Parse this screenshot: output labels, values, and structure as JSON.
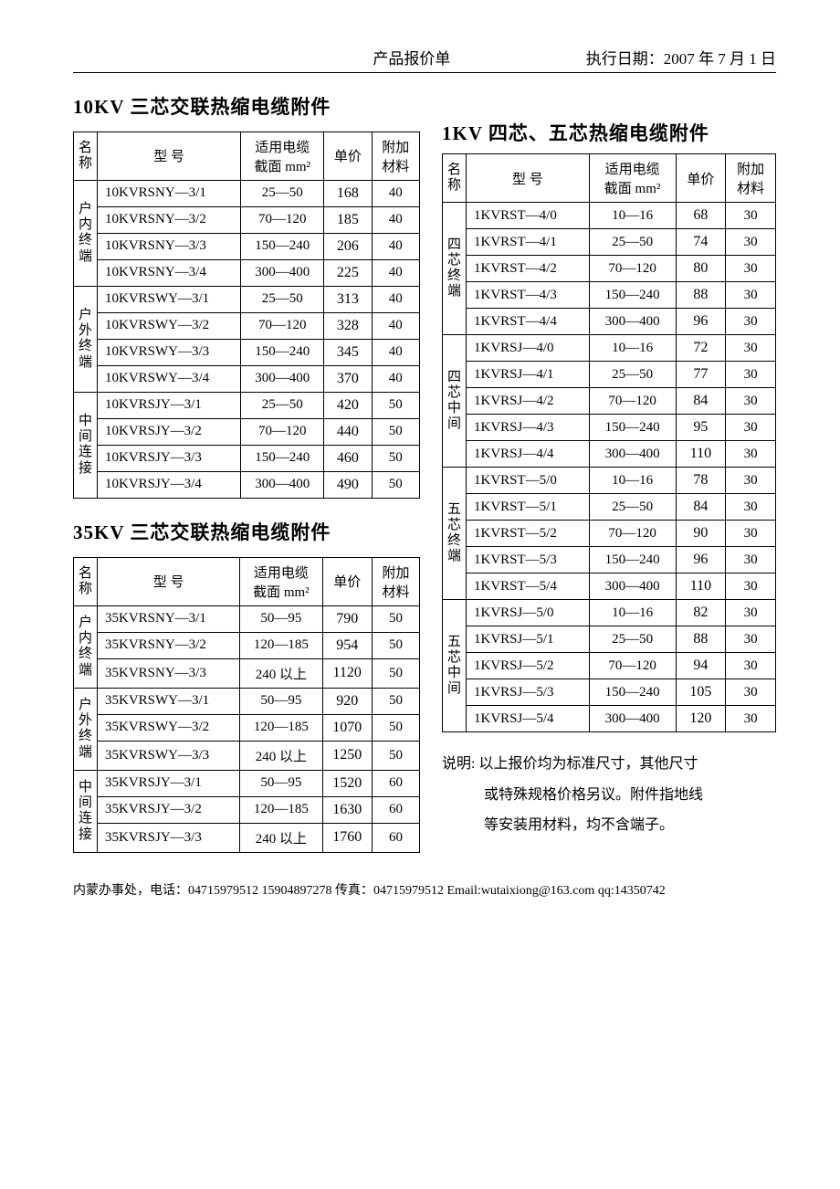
{
  "header": {
    "center": "产品报价单",
    "right_label": "执行日期：",
    "right_date": "2007 年 7 月 1 日"
  },
  "colors": {
    "text": "#000000",
    "background": "#ffffff",
    "border": "#000000"
  },
  "columns_header": {
    "name": "名称",
    "model": "型 号",
    "section_l1": "适用电缆",
    "section_l2": "截面 mm²",
    "price": "单价",
    "extra_l1": "附加",
    "extra_l2": "材料"
  },
  "table10kv": {
    "title": "10KV 三芯交联热缩电缆附件",
    "groups": [
      {
        "category": "户内终端",
        "rows": [
          {
            "model": "10KVRSNY—3/1",
            "section": "25—50",
            "price": "168",
            "extra": "40"
          },
          {
            "model": "10KVRSNY—3/2",
            "section": "70—120",
            "price": "185",
            "extra": "40"
          },
          {
            "model": "10KVRSNY—3/3",
            "section": "150—240",
            "price": "206",
            "extra": "40"
          },
          {
            "model": "10KVRSNY—3/4",
            "section": "300—400",
            "price": "225",
            "extra": "40"
          }
        ]
      },
      {
        "category": "户外终端",
        "rows": [
          {
            "model": "10KVRSWY—3/1",
            "section": "25—50",
            "price": "313",
            "extra": "40"
          },
          {
            "model": "10KVRSWY—3/2",
            "section": "70—120",
            "price": "328",
            "extra": "40"
          },
          {
            "model": "10KVRSWY—3/3",
            "section": "150—240",
            "price": "345",
            "extra": "40"
          },
          {
            "model": "10KVRSWY—3/4",
            "section": "300—400",
            "price": "370",
            "extra": "40"
          }
        ]
      },
      {
        "category": "中间连接",
        "rows": [
          {
            "model": "10KVRSJY—3/1",
            "section": "25—50",
            "price": "420",
            "extra": "50"
          },
          {
            "model": "10KVRSJY—3/2",
            "section": "70—120",
            "price": "440",
            "extra": "50"
          },
          {
            "model": "10KVRSJY—3/3",
            "section": "150—240",
            "price": "460",
            "extra": "50"
          },
          {
            "model": "10KVRSJY—3/4",
            "section": "300—400",
            "price": "490",
            "extra": "50"
          }
        ]
      }
    ]
  },
  "table35kv": {
    "title": "35KV 三芯交联热缩电缆附件",
    "groups": [
      {
        "category": "户内终端",
        "rows": [
          {
            "model": "35KVRSNY—3/1",
            "section": "50—95",
            "price": "790",
            "extra": "50"
          },
          {
            "model": "35KVRSNY—3/2",
            "section": "120—185",
            "price": "954",
            "extra": "50"
          },
          {
            "model": "35KVRSNY—3/3",
            "section": "240 以上",
            "price": "1120",
            "extra": "50"
          }
        ]
      },
      {
        "category": "户外终端",
        "rows": [
          {
            "model": "35KVRSWY—3/1",
            "section": "50—95",
            "price": "920",
            "extra": "50"
          },
          {
            "model": "35KVRSWY—3/2",
            "section": "120—185",
            "price": "1070",
            "extra": "50"
          },
          {
            "model": "35KVRSWY—3/3",
            "section": "240 以上",
            "price": "1250",
            "extra": "50"
          }
        ]
      },
      {
        "category": "中间连接",
        "rows": [
          {
            "model": "35KVRSJY—3/1",
            "section": "50—95",
            "price": "1520",
            "extra": "60"
          },
          {
            "model": "35KVRSJY—3/2",
            "section": "120—185",
            "price": "1630",
            "extra": "60"
          },
          {
            "model": "35KVRSJY—3/3",
            "section": "240 以上",
            "price": "1760",
            "extra": "60"
          }
        ]
      }
    ]
  },
  "table1kv": {
    "title": "1KV 四芯、五芯热缩电缆附件",
    "groups": [
      {
        "category": "四芯终端",
        "rows": [
          {
            "model": "1KVRST—4/0",
            "section": "10—16",
            "price": "68",
            "extra": "30"
          },
          {
            "model": "1KVRST—4/1",
            "section": "25—50",
            "price": "74",
            "extra": "30"
          },
          {
            "model": "1KVRST—4/2",
            "section": "70—120",
            "price": "80",
            "extra": "30"
          },
          {
            "model": "1KVRST—4/3",
            "section": "150—240",
            "price": "88",
            "extra": "30"
          },
          {
            "model": "1KVRST—4/4",
            "section": "300—400",
            "price": "96",
            "extra": "30"
          }
        ]
      },
      {
        "category": "四芯中间",
        "rows": [
          {
            "model": "1KVRSJ—4/0",
            "section": "10—16",
            "price": "72",
            "extra": "30"
          },
          {
            "model": "1KVRSJ—4/1",
            "section": "25—50",
            "price": "77",
            "extra": "30"
          },
          {
            "model": "1KVRSJ—4/2",
            "section": "70—120",
            "price": "84",
            "extra": "30"
          },
          {
            "model": "1KVRSJ—4/3",
            "section": "150—240",
            "price": "95",
            "extra": "30"
          },
          {
            "model": "1KVRSJ—4/4",
            "section": "300—400",
            "price": "110",
            "extra": "30"
          }
        ]
      },
      {
        "category": "五芯终端",
        "rows": [
          {
            "model": "1KVRST—5/0",
            "section": "10—16",
            "price": "78",
            "extra": "30"
          },
          {
            "model": "1KVRST—5/1",
            "section": "25—50",
            "price": "84",
            "extra": "30"
          },
          {
            "model": "1KVRST—5/2",
            "section": "70—120",
            "price": "90",
            "extra": "30"
          },
          {
            "model": "1KVRST—5/3",
            "section": "150—240",
            "price": "96",
            "extra": "30"
          },
          {
            "model": "1KVRST—5/4",
            "section": "300—400",
            "price": "110",
            "extra": "30"
          }
        ]
      },
      {
        "category": "五芯中间",
        "rows": [
          {
            "model": "1KVRSJ—5/0",
            "section": "10—16",
            "price": "82",
            "extra": "30"
          },
          {
            "model": "1KVRSJ—5/1",
            "section": "25—50",
            "price": "88",
            "extra": "30"
          },
          {
            "model": "1KVRSJ—5/2",
            "section": "70—120",
            "price": "94",
            "extra": "30"
          },
          {
            "model": "1KVRSJ—5/3",
            "section": "150—240",
            "price": "105",
            "extra": "30"
          },
          {
            "model": "1KVRSJ—5/4",
            "section": "300—400",
            "price": "120",
            "extra": "30"
          }
        ]
      }
    ]
  },
  "note": {
    "label": "说明:",
    "line1": "以上报价均为标准尺寸，其他尺寸",
    "line2": "或特殊规格价格另议。附件指地线",
    "line3": "等安装用材料，均不含端子。"
  },
  "footer": {
    "text": "内蒙办事处，电话：04715979512  15904897278 传真：04715979512   Email:wutaixiong@163.com qq:14350742"
  }
}
